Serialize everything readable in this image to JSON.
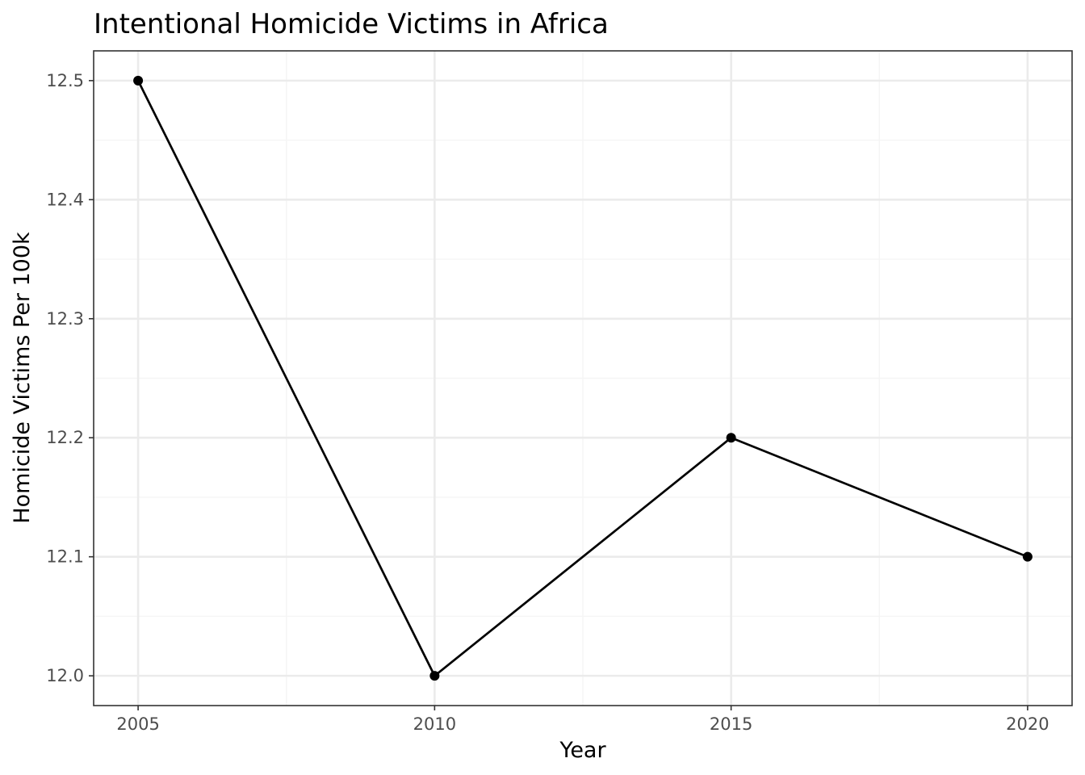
{
  "chart_data": {
    "type": "line",
    "title": "Intentional Homicide Victims in Africa",
    "xlabel": "Year",
    "ylabel": "Homicide Victims Per 100k",
    "x": [
      2005,
      2010,
      2015,
      2020
    ],
    "series": [
      {
        "values": [
          12.5,
          12.0,
          12.2,
          12.1
        ]
      }
    ],
    "xlim": [
      2004.25,
      2020.75
    ],
    "ylim": [
      11.975,
      12.525
    ],
    "x_ticks": [
      2005,
      2010,
      2015,
      2020
    ],
    "x_tick_labels": [
      "2005",
      "2010",
      "2015",
      "2020"
    ],
    "x_minor_ticks": [
      2007.5,
      2012.5,
      2017.5
    ],
    "y_ticks": [
      12.0,
      12.1,
      12.2,
      12.3,
      12.4,
      12.5
    ],
    "y_tick_labels": [
      "12.0",
      "12.1",
      "12.2",
      "12.3",
      "12.4",
      "12.5"
    ],
    "y_minor_ticks": [
      12.05,
      12.15,
      12.25,
      12.35,
      12.45
    ],
    "grid": true,
    "legend": "none",
    "colors": {
      "line": "#000000",
      "point": "#000000",
      "grid_major": "#ebebeb",
      "grid_minor": "#f5f5f5",
      "panel_border": "#333333",
      "tick_label": "#4d4d4d"
    }
  }
}
